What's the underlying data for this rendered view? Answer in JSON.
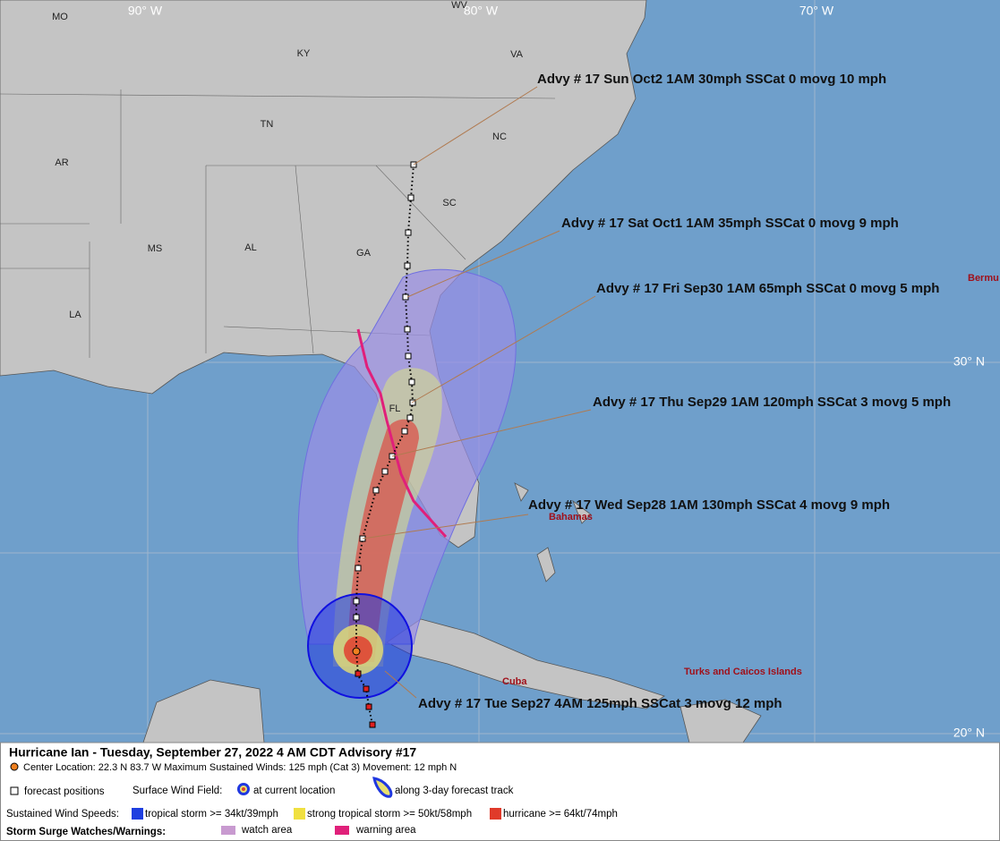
{
  "map": {
    "lon_labels": [
      "90° W",
      "80° W",
      "70° W"
    ],
    "lat_labels": [
      "30° N",
      "20° N"
    ],
    "state_labels": [
      "MO",
      "WV",
      "KY",
      "VA",
      "TN",
      "NC",
      "AR",
      "SC",
      "MS",
      "AL",
      "GA",
      "LA",
      "FL"
    ],
    "place_labels": [
      "Bermu",
      "Bahamas",
      "Cuba",
      "Turks and Caicos Islands"
    ]
  },
  "annotations": [
    "Advy # 17 Sun Oct2 1AM  30mph SSCat 0 movg 10 mph",
    "Advy # 17 Sat Oct1 1AM  35mph SSCat 0 movg 9 mph",
    "Advy # 17 Fri Sep30 1AM  65mph SSCat 0 movg 5 mph",
    "Advy # 17 Thu Sep29 1AM  120mph SSCat 3 movg 5 mph",
    "Advy # 17 Wed Sep28 1AM  130mph SSCat 4 movg 9 mph",
    "Advy # 17 Tue Sep27 4AM  125mph SSCat 3 movg 12 mph"
  ],
  "legend": {
    "title": "Hurricane Ian  -  Tuesday, September 27, 2022  4 AM CDT   Advisory #17",
    "center": "Center Location: 22.3 N  83.7 W   Maximum Sustained Winds: 125 mph (Cat 3) Movement: 12 mph N",
    "forecast_positions": "forecast positions",
    "surface_wind_field": "Surface Wind Field:",
    "at_current": "at current location",
    "along_track": "along 3-day forecast track",
    "sustained": "Sustained Wind Speeds:",
    "ts": "tropical storm >= 34kt/39mph",
    "sts": "strong tropical storm >= 50kt/58mph",
    "hu": "hurricane >= 64kt/74mph",
    "surge": "Storm Surge Watches/Warnings:",
    "watch": "watch area",
    "warning": "warning area"
  }
}
